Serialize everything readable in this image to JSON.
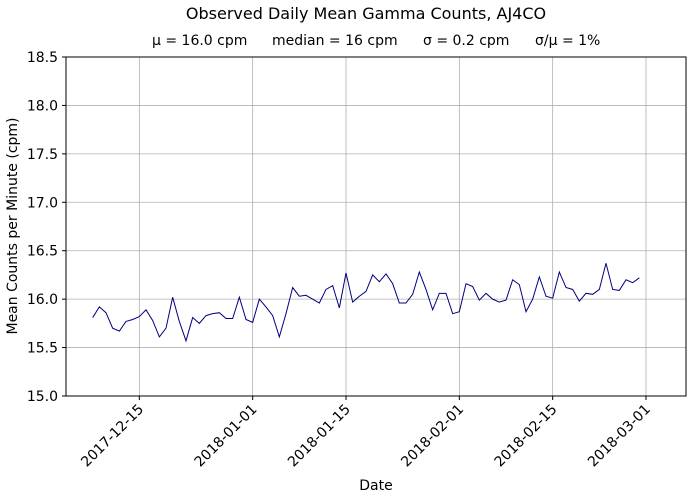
{
  "chart_data": {
    "type": "line",
    "title": "Observed Daily Mean Gamma Counts, AJ4CO",
    "subtitle": {
      "mean": "μ = 16.0 cpm",
      "median": "median = 16 cpm",
      "sigma": "σ = 0.2 cpm",
      "cv": "σ/μ = 1%"
    },
    "xlabel": "Date",
    "ylabel": "Mean Counts per Minute (cpm)",
    "xlim": [
      "2017-12-04",
      "2018-03-07"
    ],
    "ylim": [
      15.0,
      18.5
    ],
    "grid": true,
    "line_color": "#000080",
    "x_ticks": [
      "2017-12-15",
      "2018-01-01",
      "2018-01-15",
      "2018-02-01",
      "2018-02-15",
      "2018-03-01"
    ],
    "y_ticks": [
      "15.0",
      "15.5",
      "16.0",
      "16.5",
      "17.0",
      "17.5",
      "18.0",
      "18.5"
    ],
    "x_start": "2017-12-08",
    "y_values": [
      15.81,
      15.92,
      15.86,
      15.7,
      15.67,
      15.77,
      15.79,
      15.82,
      15.89,
      15.78,
      15.61,
      15.7,
      16.02,
      15.77,
      15.57,
      15.81,
      15.75,
      15.83,
      15.85,
      15.86,
      15.8,
      15.8,
      16.02,
      15.79,
      15.76,
      16.0,
      15.92,
      15.83,
      15.61,
      15.85,
      16.12,
      16.03,
      16.04,
      16.0,
      15.96,
      16.1,
      16.14,
      15.91,
      16.27,
      15.97,
      16.03,
      16.08,
      16.25,
      16.18,
      16.26,
      16.16,
      15.96,
      15.96,
      16.05,
      16.28,
      16.1,
      15.89,
      16.06,
      16.06,
      15.85,
      15.87,
      16.16,
      16.13,
      15.99,
      16.06,
      16.0,
      15.97,
      15.99,
      16.2,
      16.15,
      15.87,
      16.0,
      16.23,
      16.03,
      16.01,
      16.28,
      16.12,
      16.1,
      15.98,
      16.06,
      16.05,
      16.1,
      16.37,
      16.1,
      16.09,
      16.2,
      16.17,
      16.22
    ]
  }
}
